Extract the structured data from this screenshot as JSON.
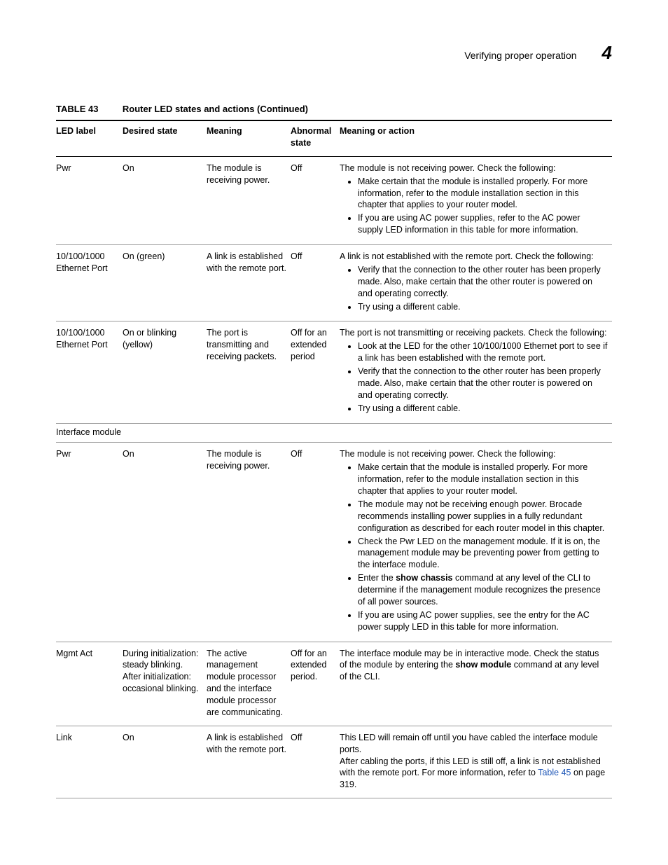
{
  "header": {
    "section_title": "Verifying proper operation",
    "chapter_number": "4"
  },
  "table_caption": {
    "number": "TABLE 43",
    "title": "Router LED states and actions  (Continued)"
  },
  "columns": {
    "c1": "LED label",
    "c2": "Desired state",
    "c3": "Meaning",
    "c4": "Abnormal state",
    "c5": "Meaning or action"
  },
  "rows": [
    {
      "led_label": "Pwr",
      "desired_state": "On",
      "meaning": "The module is receiving power.",
      "abnormal_state": "Off",
      "action": {
        "intro": "The module is not receiving power. Check the following:",
        "bullets": [
          "Make certain that the module is installed properly. For more information, refer to the module installation section in this chapter that applies to your router model.",
          "If you are using AC power supplies, refer to the AC power supply LED information in this table for more information."
        ]
      }
    },
    {
      "led_label": "10/100/1000 Ethernet Port",
      "desired_state": "On (green)",
      "meaning": "A link is established with the remote port.",
      "abnormal_state": "Off",
      "action": {
        "intro": "A link is not established with the remote port. Check the following:",
        "bullets": [
          "Verify that the connection to the other router has been properly made. Also, make certain that the other router is powered on and operating correctly.",
          "Try using a different cable."
        ]
      }
    },
    {
      "led_label": "10/100/1000 Ethernet Port",
      "desired_state": "On or blinking (yellow)",
      "meaning": "The port is transmitting and receiving packets.",
      "abnormal_state": "Off for an extended period",
      "action": {
        "intro": "The port is not transmitting or receiving packets. Check the following:",
        "bullets": [
          "Look at the LED for the other 10/100/1000 Ethernet port to see if a link has been established with the remote port.",
          "Verify that the connection to the other router has been properly made. Also, make certain that the other router is powered on and operating correctly.",
          "Try using a different cable."
        ]
      }
    },
    {
      "section": "Interface module"
    },
    {
      "led_label": "Pwr",
      "desired_state": "On",
      "meaning": "The module is receiving power.",
      "abnormal_state": "Off",
      "action": {
        "intro": "The module is not receiving power. Check the following:",
        "bullets": [
          "Make certain that the module is installed properly. For more information, refer to the module installation section in this chapter that applies to your router model.",
          "The module may not be receiving enough power. Brocade recommends installing power supplies in a fully redundant configuration as described for each router model in this chapter.",
          "Check the Pwr LED on the management module. If it is on, the management module may be preventing power from getting to the interface module.",
          {
            "pre": "Enter the ",
            "bold": "show chassis",
            "post": " command at any level of the CLI to determine if the management module recognizes the presence of all power sources."
          },
          "If you are using AC power supplies, see the entry for the AC power supply LED in this table for more information."
        ]
      }
    },
    {
      "led_label": "Mgmt Act",
      "desired_state": "During initialization: steady blinking. After initialization: occasional blinking.",
      "meaning": "The active management module processor and the interface module processor are communicating.",
      "abnormal_state": "Off for an extended period.",
      "action": {
        "rich": [
          {
            "t": "The interface module may be in interactive mode. Check the status of the module by entering the "
          },
          {
            "t": "show module",
            "bold": true
          },
          {
            "t": " command at any level of the CLI."
          }
        ]
      }
    },
    {
      "led_label": "Link",
      "desired_state": "On",
      "meaning": "A link is established with the remote port.",
      "abnormal_state": "Off",
      "action": {
        "paras": [
          "This LED will remain off until you have cabled the interface module ports.",
          {
            "rich": [
              {
                "t": "After cabling the ports, if this LED is still off, a link is not established with the remote port. For more information, refer to "
              },
              {
                "t": "Table 45",
                "link": true
              },
              {
                "t": " on page 319."
              }
            ]
          }
        ]
      }
    }
  ]
}
